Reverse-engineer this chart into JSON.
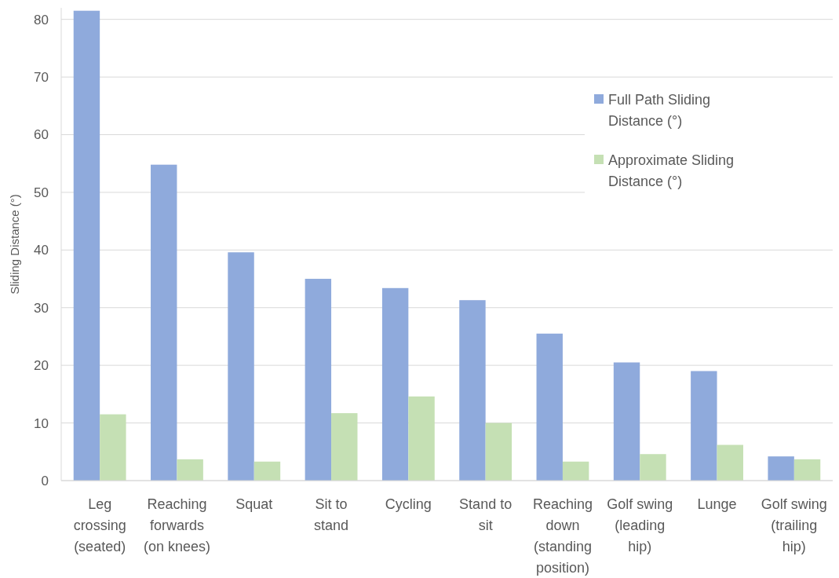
{
  "chart_data": {
    "type": "bar",
    "ylabel": "Sliding Distance (°)",
    "categories": [
      "Leg crossing (seated)",
      "Reaching forwards (on knees)",
      "Squat",
      "Sit to stand",
      "Cycling",
      "Stand to sit",
      "Reaching down (standing position)",
      "Golf swing (leading hip)",
      "Lunge",
      "Golf swing (trailing hip)"
    ],
    "series": [
      {
        "name": "Full Path Sliding Distance (°)",
        "color": "#8faadc",
        "values": [
          81.5,
          54.8,
          39.6,
          35.0,
          33.4,
          31.3,
          25.5,
          20.5,
          19.0,
          4.2
        ]
      },
      {
        "name": "Approximate Sliding Distance (°)",
        "color": "#c5e0b4",
        "values": [
          11.5,
          3.7,
          3.3,
          11.7,
          14.6,
          10.0,
          3.3,
          4.6,
          6.2,
          3.7
        ]
      }
    ],
    "ylim": [
      0,
      82
    ],
    "yticks": [
      0,
      10,
      20,
      30,
      40,
      50,
      60,
      70,
      80
    ],
    "grid": "y",
    "legend": "right"
  }
}
